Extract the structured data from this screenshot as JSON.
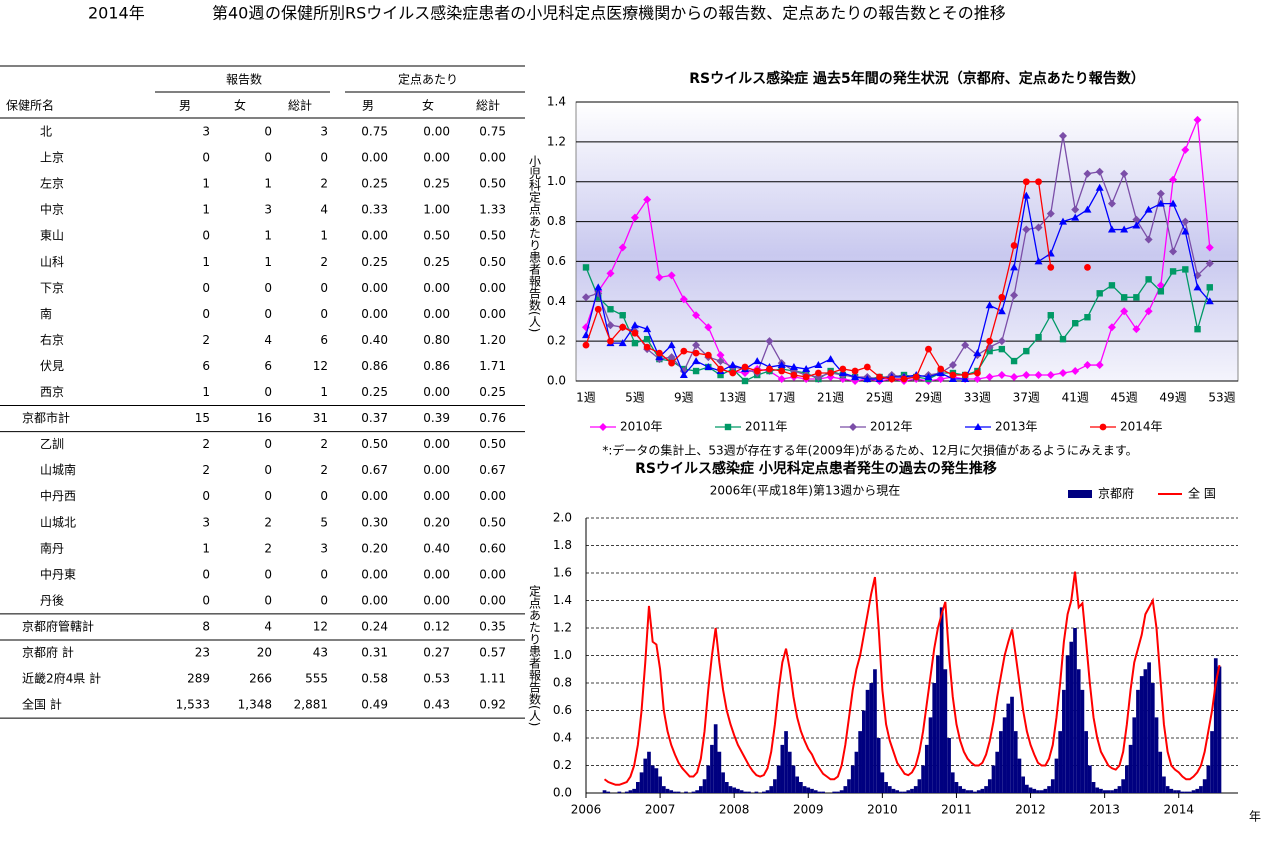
{
  "header": {
    "year": "2014年",
    "week": "第40週",
    "title": "の保健所別RSウイルス感染症患者の小児科定点医療機関からの報告数、定点あたりの報告数とその推移"
  },
  "table": {
    "group_headers": [
      "報告数",
      "定点あたり"
    ],
    "columns": [
      "保健所名",
      "男",
      "女",
      "総計",
      "男",
      "女",
      "総計"
    ],
    "rows": [
      [
        "北",
        "3",
        "0",
        "3",
        "0.75",
        "0.00",
        "0.75"
      ],
      [
        "上京",
        "0",
        "0",
        "0",
        "0.00",
        "0.00",
        "0.00"
      ],
      [
        "左京",
        "1",
        "1",
        "2",
        "0.25",
        "0.25",
        "0.50"
      ],
      [
        "中京",
        "1",
        "3",
        "4",
        "0.33",
        "1.00",
        "1.33"
      ],
      [
        "東山",
        "0",
        "1",
        "1",
        "0.00",
        "0.50",
        "0.50"
      ],
      [
        "山科",
        "1",
        "1",
        "2",
        "0.25",
        "0.25",
        "0.50"
      ],
      [
        "下京",
        "0",
        "0",
        "0",
        "0.00",
        "0.00",
        "0.00"
      ],
      [
        "南",
        "0",
        "0",
        "0",
        "0.00",
        "0.00",
        "0.00"
      ],
      [
        "右京",
        "2",
        "4",
        "6",
        "0.40",
        "0.80",
        "1.20"
      ],
      [
        "伏見",
        "6",
        "6",
        "12",
        "0.86",
        "0.86",
        "1.71"
      ],
      [
        "西京",
        "1",
        "0",
        "1",
        "0.25",
        "0.00",
        "0.25"
      ],
      [
        "京都市計",
        "15",
        "16",
        "31",
        "0.37",
        "0.39",
        "0.76"
      ],
      [
        "乙訓",
        "2",
        "0",
        "2",
        "0.50",
        "0.00",
        "0.50"
      ],
      [
        "山城南",
        "2",
        "0",
        "2",
        "0.67",
        "0.00",
        "0.67"
      ],
      [
        "中丹西",
        "0",
        "0",
        "0",
        "0.00",
        "0.00",
        "0.00"
      ],
      [
        "山城北",
        "3",
        "2",
        "5",
        "0.30",
        "0.20",
        "0.50"
      ],
      [
        "南丹",
        "1",
        "2",
        "3",
        "0.20",
        "0.40",
        "0.60"
      ],
      [
        "中丹東",
        "0",
        "0",
        "0",
        "0.00",
        "0.00",
        "0.00"
      ],
      [
        "丹後",
        "0",
        "0",
        "0",
        "0.00",
        "0.00",
        "0.00"
      ],
      [
        "京都府管轄計",
        "8",
        "4",
        "12",
        "0.24",
        "0.12",
        "0.35"
      ],
      [
        "京都府  計",
        "23",
        "20",
        "43",
        "0.31",
        "0.27",
        "0.57"
      ],
      [
        "近畿2府4県  計",
        "289",
        "266",
        "555",
        "0.58",
        "0.53",
        "1.11"
      ],
      [
        "全国  計",
        "1,533",
        "1,348",
        "2,881",
        "0.49",
        "0.43",
        "0.92"
      ]
    ]
  },
  "chart_data": [
    {
      "type": "line",
      "title": "RSウイルス感染症  過去5年間の発生状況（京都府、定点あたり報告数）",
      "y_label": "小児科定点あたり患者報告数(人)",
      "note": "*:データの集計上、53週が存在する年(2009年)があるため、12月に欠損値があるようにみえます。",
      "categories": [
        "1週",
        null,
        null,
        null,
        "5週",
        null,
        null,
        null,
        "9週",
        null,
        null,
        null,
        "13週",
        null,
        null,
        null,
        "17週",
        null,
        null,
        null,
        "21週",
        null,
        null,
        null,
        "25週",
        null,
        null,
        null,
        "29週",
        null,
        null,
        null,
        "33週",
        null,
        null,
        null,
        "37週",
        null,
        null,
        null,
        "41週",
        null,
        null,
        null,
        "45週",
        null,
        null,
        null,
        "49週",
        null,
        null,
        null,
        "53週"
      ],
      "ylim": [
        0,
        1.4
      ],
      "yticks": [
        {
          "value": 0,
          "label": "0.0"
        },
        0.2,
        0.4,
        0.6,
        0.8,
        {
          "value": 1,
          "label": "1.0"
        },
        1.2,
        1.4
      ],
      "grid": true,
      "legend": "bottom",
      "series": [
        {
          "name": "2010年",
          "color": "#ff00ff",
          "marker": "diamond",
          "values": [
            0.27,
            0.45,
            0.54,
            0.67,
            0.82,
            0.91,
            0.52,
            0.53,
            0.41,
            0.33,
            0.27,
            0.13,
            0.05,
            0.04,
            0.06,
            0.05,
            0.01,
            0.02,
            0.01,
            0.01,
            0.02,
            0.01,
            0.0,
            0.01,
            0.0,
            0.01,
            0.0,
            0.01,
            0.0,
            0.01,
            0.02,
            0.01,
            0.01,
            0.02,
            0.03,
            0.02,
            0.03,
            0.03,
            0.03,
            0.04,
            0.05,
            0.08,
            0.08,
            0.27,
            0.35,
            0.26,
            0.35,
            0.48,
            1.01,
            1.16,
            1.31,
            0.67,
            null
          ]
        },
        {
          "name": "2011年",
          "color": "#009966",
          "marker": "square",
          "values": [
            0.57,
            0.42,
            0.36,
            0.33,
            0.19,
            0.21,
            0.11,
            0.1,
            0.06,
            0.05,
            0.07,
            0.03,
            0.06,
            0.0,
            0.03,
            0.05,
            0.06,
            0.05,
            0.04,
            0.01,
            0.05,
            0.03,
            0.02,
            0.01,
            0.02,
            0.02,
            0.03,
            0.02,
            0.01,
            0.04,
            0.04,
            0.03,
            0.05,
            0.15,
            0.16,
            0.1,
            0.15,
            0.22,
            0.33,
            0.21,
            0.29,
            0.32,
            0.44,
            0.48,
            0.42,
            0.42,
            0.51,
            0.45,
            0.55,
            0.56,
            0.26,
            0.47,
            null
          ]
        },
        {
          "name": "2012年",
          "color": "#7b4ea8",
          "marker": "diamond",
          "values": [
            0.42,
            0.44,
            0.28,
            0.27,
            0.25,
            0.16,
            0.11,
            0.12,
            0.05,
            0.18,
            0.12,
            0.1,
            0.07,
            0.06,
            0.04,
            0.2,
            0.09,
            0.05,
            0.03,
            0.02,
            0.04,
            0.03,
            0.02,
            0.02,
            0.01,
            0.03,
            0.02,
            0.02,
            0.03,
            0.04,
            0.08,
            0.18,
            0.13,
            0.17,
            0.2,
            0.43,
            0.76,
            0.77,
            0.84,
            1.23,
            0.86,
            1.04,
            1.05,
            0.89,
            1.04,
            0.81,
            0.71,
            0.94,
            0.65,
            0.8,
            0.53,
            0.59,
            null
          ]
        },
        {
          "name": "2013年",
          "color": "#0000ff",
          "marker": "triangle",
          "values": [
            0.23,
            0.47,
            0.19,
            0.19,
            0.28,
            0.26,
            0.12,
            0.18,
            0.03,
            0.1,
            0.07,
            0.05,
            0.08,
            0.06,
            0.1,
            0.07,
            0.08,
            0.07,
            0.06,
            0.08,
            0.11,
            0.04,
            0.02,
            0.01,
            0.01,
            0.02,
            0.02,
            0.03,
            0.02,
            0.04,
            0.01,
            0.01,
            0.14,
            0.38,
            0.35,
            0.57,
            0.93,
            0.6,
            0.64,
            0.8,
            0.82,
            0.86,
            0.97,
            0.76,
            0.76,
            0.78,
            0.86,
            0.89,
            0.89,
            0.75,
            0.47,
            0.4,
            null
          ]
        },
        {
          "name": "2014年",
          "color": "#ff0000",
          "marker": "circle",
          "values": [
            0.18,
            0.36,
            0.2,
            0.27,
            0.24,
            0.17,
            0.14,
            0.09,
            0.15,
            0.14,
            0.13,
            0.06,
            0.04,
            0.07,
            0.05,
            0.06,
            0.05,
            0.03,
            0.02,
            0.04,
            0.04,
            0.06,
            0.05,
            0.07,
            0.02,
            0.01,
            0.01,
            0.02,
            0.16,
            0.06,
            0.03,
            0.03,
            0.04,
            0.2,
            0.42,
            0.68,
            1.0,
            1.0,
            0.57,
            null,
            null,
            0.57,
            null,
            null,
            null,
            null,
            null,
            null,
            null,
            null,
            null,
            null,
            null
          ]
        }
      ]
    },
    {
      "type": "combo",
      "title": "RSウイルス感染症  小児科定点患者発生の過去の発生推移",
      "subtitle": "2006年(平成18年)第13週から現在",
      "y_label": "定点あたり患者報告数(人)",
      "x_unit": "年",
      "xlim": [
        2006,
        2014.8
      ],
      "xticks": [
        2006,
        2007,
        2008,
        2009,
        2010,
        2011,
        2012,
        2013,
        2014
      ],
      "ylim": [
        0,
        2
      ],
      "yticks": [
        {
          "value": 0,
          "label": "0.0"
        },
        0.2,
        0.4,
        0.6,
        0.8,
        {
          "value": 1,
          "label": "1.0"
        },
        1.2,
        1.4,
        1.6,
        1.8,
        {
          "value": 2,
          "label": "2.0"
        }
      ],
      "grid": true,
      "legend": "top-right",
      "x": [
        2006.25,
        2006.3,
        2006.35,
        2006.4,
        2006.45,
        2006.5,
        2006.55,
        2006.6,
        2006.65,
        2006.7,
        2006.75,
        2006.8,
        2006.85,
        2006.9,
        2006.95,
        2007,
        2007.05,
        2007.1,
        2007.15,
        2007.2,
        2007.25,
        2007.3,
        2007.35,
        2007.4,
        2007.45,
        2007.5,
        2007.55,
        2007.6,
        2007.65,
        2007.7,
        2007.75,
        2007.8,
        2007.85,
        2007.9,
        2007.95,
        2008,
        2008.05,
        2008.1,
        2008.15,
        2008.2,
        2008.25,
        2008.3,
        2008.35,
        2008.4,
        2008.45,
        2008.5,
        2008.55,
        2008.6,
        2008.65,
        2008.7,
        2008.75,
        2008.8,
        2008.85,
        2008.9,
        2008.95,
        2009,
        2009.05,
        2009.1,
        2009.15,
        2009.2,
        2009.25,
        2009.3,
        2009.35,
        2009.4,
        2009.45,
        2009.5,
        2009.55,
        2009.6,
        2009.65,
        2009.7,
        2009.75,
        2009.8,
        2009.85,
        2009.9,
        2009.95,
        2010,
        2010.05,
        2010.1,
        2010.15,
        2010.2,
        2010.25,
        2010.3,
        2010.35,
        2010.4,
        2010.45,
        2010.5,
        2010.55,
        2010.6,
        2010.65,
        2010.7,
        2010.75,
        2010.8,
        2010.85,
        2010.9,
        2010.95,
        2011,
        2011.05,
        2011.1,
        2011.15,
        2011.2,
        2011.25,
        2011.3,
        2011.35,
        2011.4,
        2011.45,
        2011.5,
        2011.55,
        2011.6,
        2011.65,
        2011.7,
        2011.75,
        2011.8,
        2011.85,
        2011.9,
        2011.95,
        2012,
        2012.05,
        2012.1,
        2012.15,
        2012.2,
        2012.25,
        2012.3,
        2012.35,
        2012.4,
        2012.45,
        2012.5,
        2012.55,
        2012.6,
        2012.65,
        2012.7,
        2012.75,
        2012.8,
        2012.85,
        2012.9,
        2012.95,
        2013,
        2013.05,
        2013.1,
        2013.15,
        2013.2,
        2013.25,
        2013.3,
        2013.35,
        2013.4,
        2013.45,
        2013.5,
        2013.55,
        2013.6,
        2013.65,
        2013.7,
        2013.75,
        2013.8,
        2013.85,
        2013.9,
        2013.95,
        2014,
        2014.05,
        2014.1,
        2014.15,
        2014.2,
        2014.25,
        2014.3,
        2014.35,
        2014.4,
        2014.45,
        2014.5,
        2014.55
      ],
      "series": [
        {
          "name": "京都府",
          "type": "bar",
          "color": "#000080",
          "values": [
            0.02,
            0.01,
            0.0,
            0.0,
            0.01,
            0.0,
            0.01,
            0.02,
            0.03,
            0.08,
            0.15,
            0.25,
            0.3,
            0.2,
            0.18,
            0.12,
            0.05,
            0.03,
            0.02,
            0.01,
            0.01,
            0.0,
            0.01,
            0.0,
            0.01,
            0.02,
            0.05,
            0.1,
            0.2,
            0.35,
            0.5,
            0.3,
            0.15,
            0.08,
            0.05,
            0.04,
            0.03,
            0.02,
            0.01,
            0.01,
            0.0,
            0.01,
            0.0,
            0.01,
            0.02,
            0.05,
            0.1,
            0.2,
            0.35,
            0.45,
            0.3,
            0.2,
            0.12,
            0.08,
            0.05,
            0.04,
            0.03,
            0.02,
            0.01,
            0.01,
            0.0,
            0.0,
            0.01,
            0.01,
            0.02,
            0.05,
            0.1,
            0.2,
            0.3,
            0.45,
            0.6,
            0.75,
            0.8,
            0.9,
            0.4,
            0.15,
            0.08,
            0.05,
            0.03,
            0.02,
            0.01,
            0.01,
            0.02,
            0.03,
            0.05,
            0.1,
            0.2,
            0.35,
            0.55,
            0.8,
            1.0,
            1.35,
            0.9,
            0.4,
            0.15,
            0.08,
            0.05,
            0.03,
            0.02,
            0.02,
            0.01,
            0.02,
            0.03,
            0.05,
            0.1,
            0.2,
            0.3,
            0.45,
            0.55,
            0.65,
            0.7,
            0.45,
            0.25,
            0.12,
            0.06,
            0.04,
            0.03,
            0.02,
            0.02,
            0.03,
            0.05,
            0.1,
            0.25,
            0.45,
            0.75,
            1.0,
            1.1,
            1.2,
            0.9,
            0.75,
            0.45,
            0.2,
            0.08,
            0.04,
            0.03,
            0.02,
            0.02,
            0.02,
            0.03,
            0.05,
            0.1,
            0.2,
            0.35,
            0.55,
            0.75,
            0.85,
            0.9,
            0.95,
            0.8,
            0.55,
            0.3,
            0.12,
            0.05,
            0.03,
            0.02,
            0.02,
            0.01,
            0.01,
            0.01,
            0.02,
            0.03,
            0.05,
            0.1,
            0.2,
            0.45,
            0.98,
            0.92
          ]
        },
        {
          "name": "全  国",
          "type": "line",
          "color": "#ff0000",
          "values": [
            0.1,
            0.08,
            0.07,
            0.06,
            0.06,
            0.07,
            0.08,
            0.12,
            0.2,
            0.35,
            0.6,
            0.95,
            1.36,
            1.1,
            1.08,
            0.9,
            0.6,
            0.45,
            0.35,
            0.28,
            0.22,
            0.18,
            0.15,
            0.12,
            0.12,
            0.15,
            0.25,
            0.45,
            0.75,
            1.0,
            1.2,
            0.95,
            0.75,
            0.6,
            0.5,
            0.42,
            0.35,
            0.3,
            0.25,
            0.2,
            0.16,
            0.13,
            0.12,
            0.13,
            0.18,
            0.3,
            0.5,
            0.75,
            0.95,
            1.05,
            0.9,
            0.7,
            0.55,
            0.45,
            0.38,
            0.32,
            0.28,
            0.22,
            0.18,
            0.14,
            0.12,
            0.1,
            0.1,
            0.12,
            0.2,
            0.35,
            0.55,
            0.75,
            0.9,
            1.0,
            1.15,
            1.3,
            1.45,
            1.57,
            1.2,
            0.75,
            0.5,
            0.38,
            0.3,
            0.22,
            0.18,
            0.14,
            0.13,
            0.15,
            0.2,
            0.3,
            0.45,
            0.65,
            0.85,
            1.05,
            1.2,
            1.3,
            1.39,
            1.0,
            0.7,
            0.5,
            0.38,
            0.3,
            0.25,
            0.22,
            0.2,
            0.2,
            0.22,
            0.28,
            0.38,
            0.52,
            0.7,
            0.85,
            1.0,
            1.1,
            1.19,
            1.0,
            0.8,
            0.6,
            0.45,
            0.35,
            0.28,
            0.22,
            0.2,
            0.2,
            0.25,
            0.35,
            0.55,
            0.8,
            1.1,
            1.3,
            1.4,
            1.61,
            1.35,
            1.38,
            1.1,
            0.8,
            0.55,
            0.4,
            0.3,
            0.25,
            0.2,
            0.18,
            0.17,
            0.2,
            0.3,
            0.5,
            0.75,
            0.95,
            1.05,
            1.15,
            1.3,
            1.35,
            1.4,
            1.2,
            0.85,
            0.5,
            0.3,
            0.2,
            0.17,
            0.15,
            0.12,
            0.1,
            0.1,
            0.12,
            0.15,
            0.2,
            0.3,
            0.45,
            0.6,
            0.8,
            0.93
          ]
        }
      ]
    }
  ]
}
